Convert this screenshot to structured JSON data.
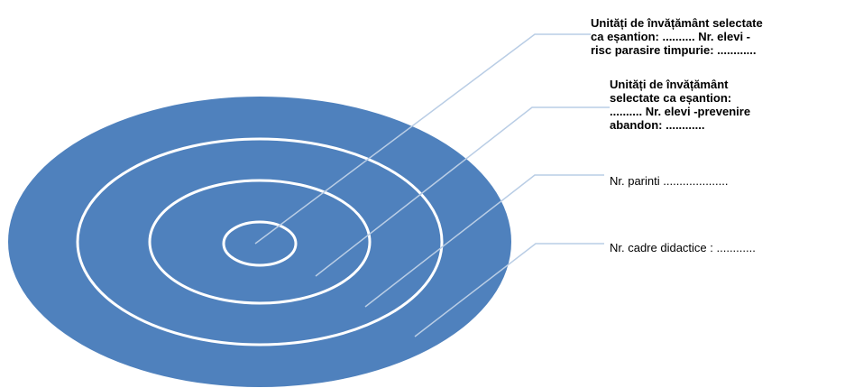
{
  "diagram": {
    "type": "concentric-rings",
    "colors": {
      "disk_fill": "#4F81BD",
      "ring_stroke": "#FFFFFF",
      "leader_line": "#B9CDE5",
      "text": "#000000"
    },
    "labels": [
      {
        "text": "Unități de învățământ selectate\nca eșantion: .......... Nr. elevi  -\nrisc parasire timpurie: ............",
        "bold": true
      },
      {
        "text": "Unități de învățământ\nselectate ca eșantion:\n.......... Nr. elevi  -prevenire\nabandon: ............",
        "bold": true
      },
      {
        "text": "Nr. parinti    ....................",
        "bold": false
      },
      {
        "text": "Nr. cadre didactice : ............",
        "bold": false
      }
    ]
  }
}
